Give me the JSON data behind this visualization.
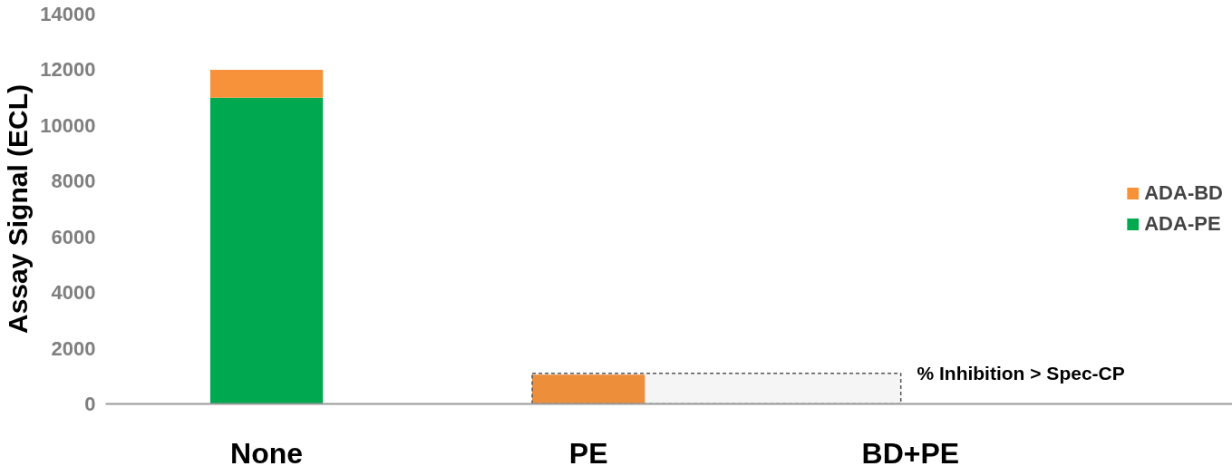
{
  "chart_data": {
    "type": "bar",
    "stacked": true,
    "ylabel": "Assay Signal (ECL)",
    "categories": [
      "None",
      "PE",
      "BD+PE"
    ],
    "series": [
      {
        "name": "ADA-PE",
        "color": "#00a94f",
        "values": [
          11000,
          0,
          0
        ]
      },
      {
        "name": "ADA-BD",
        "color": "#f7923a",
        "values": [
          1000,
          1050,
          0
        ]
      }
    ],
    "ylim": [
      0,
      14000
    ],
    "yticks": [
      0,
      2000,
      4000,
      6000,
      8000,
      10000,
      12000,
      14000
    ],
    "grid": false,
    "legend": "right",
    "bands": [
      {
        "axis": "y",
        "from": 0,
        "to": 1100,
        "label": "% Inhibition > Spec-CP",
        "color": "#555555"
      }
    ]
  }
}
